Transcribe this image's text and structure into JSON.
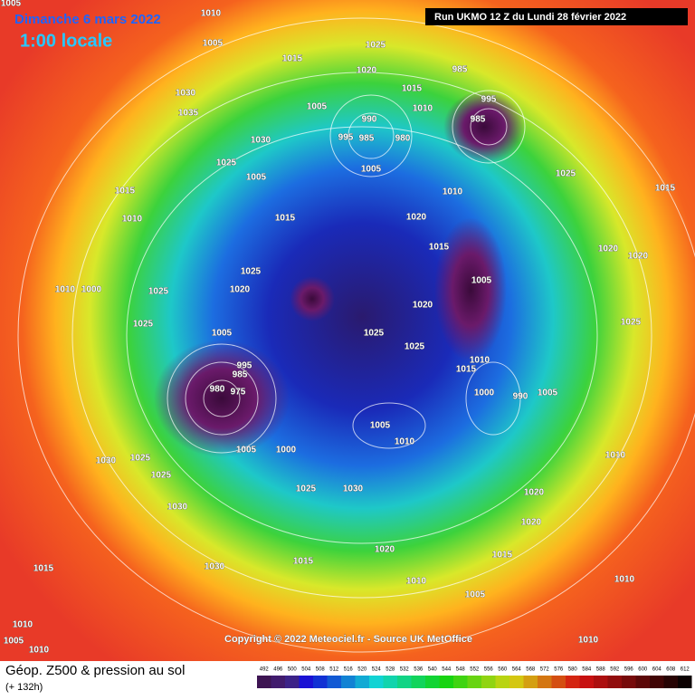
{
  "header": {
    "date": "Dimanche 6 mars 2022",
    "time": "1:00 locale",
    "run": "Run UKMO 12 Z du Lundi 28 février 2022"
  },
  "copyright": "Copyright © 2022 Meteociel.fr - Source UK MetOffice",
  "footer": {
    "title": "Géop. Z500 & pression au sol",
    "lead": "(+ 132h)"
  },
  "scale": [
    492,
    496,
    500,
    504,
    508,
    512,
    516,
    520,
    524,
    528,
    532,
    536,
    540,
    544,
    548,
    552,
    556,
    560,
    564,
    568,
    572,
    576,
    580,
    584,
    588,
    592,
    596,
    600,
    604,
    608,
    612
  ],
  "isobar_labels": [
    "1005",
    "1010",
    "1005",
    "1025",
    "1015",
    "985",
    "1020",
    "1015",
    "1030",
    "995",
    "1005",
    "1010",
    "1035",
    "990",
    "985",
    "1030",
    "995",
    "985",
    "980",
    "1025",
    "1005",
    "1005",
    "1025",
    "1015",
    "1010",
    "1015",
    "1010",
    "1015",
    "1020",
    "1015",
    "1020",
    "1020",
    "1025",
    "1005",
    "1010",
    "1000",
    "1025",
    "1020",
    "1020",
    "1025",
    "1025",
    "1025",
    "1025",
    "1005",
    "995",
    "985",
    "980",
    "975",
    "1010",
    "1015",
    "1005",
    "1000",
    "990",
    "1005",
    "1010",
    "1005",
    "1000",
    "1030",
    "1025",
    "1025",
    "1010",
    "1030",
    "1025",
    "1020",
    "1030",
    "1020",
    "1015",
    "1030",
    "1015",
    "1020",
    "1015",
    "1010",
    "1005",
    "1010",
    "1010",
    "1010",
    "1005",
    "1010"
  ]
}
